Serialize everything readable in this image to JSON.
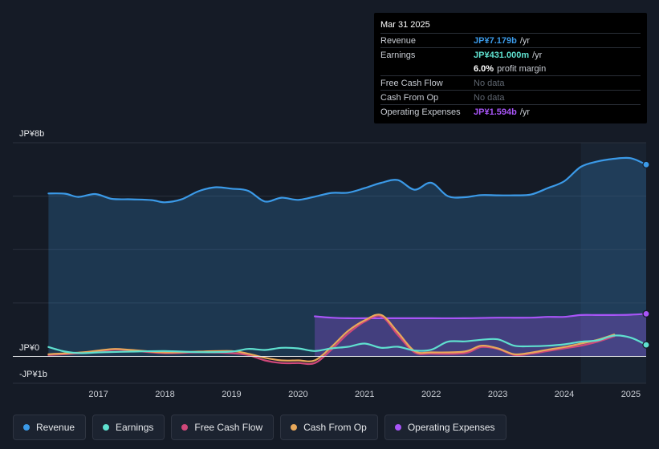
{
  "tooltip": {
    "date": "Mar 31 2025",
    "rows": [
      {
        "label": "Revenue",
        "value": "JP¥7.179b",
        "unit": "/yr",
        "color": "#3b9ae8"
      },
      {
        "label": "Earnings",
        "value": "JP¥431.000m",
        "unit": "/yr",
        "color": "#5fe0cf"
      },
      {
        "label": "",
        "value": "6.0%",
        "unit": "profit margin",
        "color": "#ffffff"
      },
      {
        "label": "Free Cash Flow",
        "value": "No data",
        "unit": "",
        "color": "#5f6670"
      },
      {
        "label": "Cash From Op",
        "value": "No data",
        "unit": "",
        "color": "#5f6670"
      },
      {
        "label": "Operating Expenses",
        "value": "JP¥1.594b",
        "unit": "/yr",
        "color": "#a855f7"
      }
    ]
  },
  "legend": [
    {
      "label": "Revenue",
      "color": "#3b9ae8"
    },
    {
      "label": "Earnings",
      "color": "#5fe0cf"
    },
    {
      "label": "Free Cash Flow",
      "color": "#d0487a"
    },
    {
      "label": "Cash From Op",
      "color": "#e8a85a"
    },
    {
      "label": "Operating Expenses",
      "color": "#a855f7"
    }
  ],
  "chart_data": {
    "type": "line",
    "title": "",
    "y_top_label": "JP¥8b",
    "y_zero_label": "JP¥0",
    "y_bottom_label": "-JP¥1b",
    "ylim": [
      -1,
      8
    ],
    "xlim": [
      2016.1,
      2025.23
    ],
    "x_ticks": [
      "2017",
      "2018",
      "2019",
      "2020",
      "2021",
      "2022",
      "2023",
      "2024",
      "2025"
    ],
    "grid": true,
    "legend_position": "bottom",
    "series": [
      {
        "name": "Revenue",
        "color": "#3b9ae8",
        "area": true,
        "points": [
          [
            2016.25,
            6.1
          ],
          [
            2016.5,
            6.09
          ],
          [
            2016.7,
            5.97
          ],
          [
            2016.95,
            6.08
          ],
          [
            2017.2,
            5.9
          ],
          [
            2017.5,
            5.88
          ],
          [
            2017.8,
            5.85
          ],
          [
            2018.0,
            5.77
          ],
          [
            2018.25,
            5.88
          ],
          [
            2018.5,
            6.18
          ],
          [
            2018.75,
            6.33
          ],
          [
            2019.0,
            6.28
          ],
          [
            2019.25,
            6.2
          ],
          [
            2019.5,
            5.8
          ],
          [
            2019.75,
            5.94
          ],
          [
            2020.0,
            5.86
          ],
          [
            2020.25,
            5.98
          ],
          [
            2020.5,
            6.12
          ],
          [
            2020.75,
            6.13
          ],
          [
            2021.0,
            6.3
          ],
          [
            2021.25,
            6.5
          ],
          [
            2021.5,
            6.6
          ],
          [
            2021.75,
            6.24
          ],
          [
            2022.0,
            6.5
          ],
          [
            2022.25,
            6.0
          ],
          [
            2022.5,
            5.96
          ],
          [
            2022.75,
            6.04
          ],
          [
            2023.0,
            6.03
          ],
          [
            2023.25,
            6.03
          ],
          [
            2023.5,
            6.06
          ],
          [
            2023.75,
            6.3
          ],
          [
            2024.0,
            6.56
          ],
          [
            2024.25,
            7.1
          ],
          [
            2024.5,
            7.3
          ],
          [
            2024.75,
            7.4
          ],
          [
            2025.0,
            7.42
          ],
          [
            2025.23,
            7.18
          ]
        ]
      },
      {
        "name": "Earnings",
        "color": "#5fe0cf",
        "area": false,
        "points": [
          [
            2016.25,
            0.35
          ],
          [
            2016.5,
            0.18
          ],
          [
            2016.75,
            0.12
          ],
          [
            2017.0,
            0.15
          ],
          [
            2017.5,
            0.18
          ],
          [
            2018.0,
            0.2
          ],
          [
            2018.5,
            0.16
          ],
          [
            2019.0,
            0.18
          ],
          [
            2019.25,
            0.28
          ],
          [
            2019.5,
            0.24
          ],
          [
            2019.75,
            0.32
          ],
          [
            2020.0,
            0.3
          ],
          [
            2020.25,
            0.2
          ],
          [
            2020.5,
            0.3
          ],
          [
            2020.75,
            0.36
          ],
          [
            2021.0,
            0.48
          ],
          [
            2021.25,
            0.32
          ],
          [
            2021.5,
            0.36
          ],
          [
            2021.75,
            0.22
          ],
          [
            2022.0,
            0.25
          ],
          [
            2022.25,
            0.55
          ],
          [
            2022.5,
            0.56
          ],
          [
            2022.75,
            0.62
          ],
          [
            2023.0,
            0.64
          ],
          [
            2023.25,
            0.4
          ],
          [
            2023.5,
            0.38
          ],
          [
            2023.75,
            0.4
          ],
          [
            2024.0,
            0.45
          ],
          [
            2024.25,
            0.55
          ],
          [
            2024.5,
            0.6
          ],
          [
            2024.75,
            0.78
          ],
          [
            2025.0,
            0.7
          ],
          [
            2025.23,
            0.431
          ]
        ]
      },
      {
        "name": "Free Cash Flow",
        "color": "#d0487a",
        "area": false,
        "points": [
          [
            2016.25,
            0.05
          ],
          [
            2016.75,
            0.12
          ],
          [
            2017.0,
            0.18
          ],
          [
            2017.25,
            0.25
          ],
          [
            2017.5,
            0.22
          ],
          [
            2018.0,
            0.12
          ],
          [
            2018.5,
            0.15
          ],
          [
            2019.0,
            0.12
          ],
          [
            2019.25,
            0.05
          ],
          [
            2019.5,
            -0.15
          ],
          [
            2019.75,
            -0.25
          ],
          [
            2020.0,
            -0.25
          ],
          [
            2020.25,
            -0.25
          ],
          [
            2020.5,
            0.25
          ],
          [
            2020.75,
            0.85
          ],
          [
            2021.0,
            1.3
          ],
          [
            2021.25,
            1.5
          ],
          [
            2021.5,
            0.8
          ],
          [
            2021.75,
            0.15
          ],
          [
            2022.0,
            0.1
          ],
          [
            2022.5,
            0.12
          ],
          [
            2022.75,
            0.35
          ],
          [
            2023.0,
            0.28
          ],
          [
            2023.25,
            0.05
          ],
          [
            2023.5,
            0.1
          ],
          [
            2023.75,
            0.2
          ],
          [
            2024.0,
            0.3
          ],
          [
            2024.25,
            0.4
          ],
          [
            2024.5,
            0.55
          ],
          [
            2024.75,
            0.75
          ]
        ]
      },
      {
        "name": "Cash From Op",
        "color": "#e8a85a",
        "area": false,
        "points": [
          [
            2016.25,
            0.08
          ],
          [
            2016.75,
            0.15
          ],
          [
            2017.0,
            0.22
          ],
          [
            2017.25,
            0.28
          ],
          [
            2017.5,
            0.24
          ],
          [
            2018.0,
            0.15
          ],
          [
            2018.5,
            0.18
          ],
          [
            2019.0,
            0.2
          ],
          [
            2019.25,
            0.1
          ],
          [
            2019.5,
            -0.05
          ],
          [
            2019.75,
            -0.15
          ],
          [
            2020.0,
            -0.15
          ],
          [
            2020.25,
            -0.15
          ],
          [
            2020.5,
            0.35
          ],
          [
            2020.75,
            0.95
          ],
          [
            2021.0,
            1.35
          ],
          [
            2021.25,
            1.55
          ],
          [
            2021.5,
            0.9
          ],
          [
            2021.75,
            0.2
          ],
          [
            2022.0,
            0.15
          ],
          [
            2022.5,
            0.18
          ],
          [
            2022.75,
            0.4
          ],
          [
            2023.0,
            0.3
          ],
          [
            2023.25,
            0.08
          ],
          [
            2023.5,
            0.14
          ],
          [
            2023.75,
            0.25
          ],
          [
            2024.0,
            0.35
          ],
          [
            2024.25,
            0.48
          ],
          [
            2024.5,
            0.62
          ],
          [
            2024.75,
            0.82
          ]
        ]
      },
      {
        "name": "Operating Expenses",
        "color": "#a855f7",
        "area": true,
        "points": [
          [
            2020.25,
            1.5
          ],
          [
            2020.5,
            1.45
          ],
          [
            2020.75,
            1.43
          ],
          [
            2021.0,
            1.43
          ],
          [
            2021.5,
            1.43
          ],
          [
            2022.0,
            1.43
          ],
          [
            2022.5,
            1.43
          ],
          [
            2023.0,
            1.45
          ],
          [
            2023.5,
            1.45
          ],
          [
            2023.75,
            1.48
          ],
          [
            2024.0,
            1.48
          ],
          [
            2024.25,
            1.55
          ],
          [
            2024.5,
            1.55
          ],
          [
            2024.75,
            1.55
          ],
          [
            2025.0,
            1.56
          ],
          [
            2025.23,
            1.594
          ]
        ]
      }
    ]
  }
}
